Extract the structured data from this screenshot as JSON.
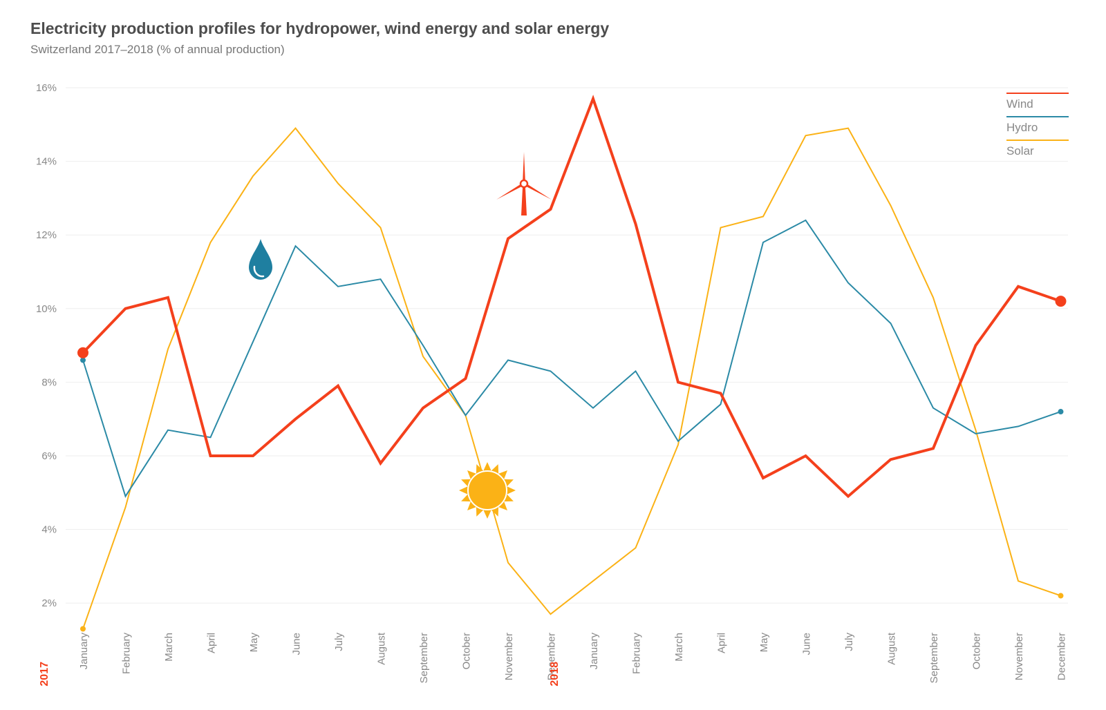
{
  "title": "Electricity production profiles for hydropower, wind energy and solar energy",
  "subtitle": "Switzerland 2017–2018 (% of annual production)",
  "colors": {
    "wind": "#f4401c",
    "hydro": "#2b8aa6",
    "solar": "#fbb216",
    "grid": "#eeeeee"
  },
  "icons": [
    "water-drop-icon",
    "wind-turbine-icon",
    "sun-icon"
  ],
  "chart_data": {
    "type": "line",
    "years": [
      {
        "label": "2017",
        "start_index": 0
      },
      {
        "label": "2018",
        "start_index": 12
      }
    ],
    "categories": [
      "January",
      "February",
      "March",
      "April",
      "May",
      "June",
      "July",
      "August",
      "September",
      "October",
      "November",
      "December",
      "January",
      "February",
      "March",
      "April",
      "May",
      "June",
      "July",
      "August",
      "September",
      "October",
      "November",
      "December"
    ],
    "y_ticks": [
      "2%",
      "4%",
      "6%",
      "8%",
      "10%",
      "12%",
      "14%",
      "16%"
    ],
    "ylim": [
      1.0,
      16.0
    ],
    "grid": true,
    "legend_position": "top-right",
    "series": [
      {
        "name": "Wind",
        "key": "wind",
        "values": [
          8.8,
          10.0,
          10.3,
          6.0,
          6.0,
          7.0,
          7.9,
          5.8,
          7.3,
          8.1,
          11.9,
          12.7,
          15.7,
          12.3,
          8.0,
          7.7,
          5.4,
          6.0,
          4.9,
          5.9,
          6.2,
          9.0,
          10.6,
          10.2
        ]
      },
      {
        "name": "Hydro",
        "key": "hydro",
        "values": [
          8.6,
          4.9,
          6.7,
          6.5,
          9.1,
          11.7,
          10.6,
          10.8,
          9.0,
          7.1,
          8.6,
          8.3,
          7.3,
          8.3,
          6.4,
          7.4,
          11.8,
          12.4,
          10.7,
          9.6,
          7.3,
          6.6,
          6.8,
          7.2
        ]
      },
      {
        "name": "Solar",
        "key": "solar",
        "values": [
          1.3,
          4.6,
          8.9,
          11.8,
          13.6,
          14.9,
          13.4,
          12.2,
          8.7,
          7.1,
          3.1,
          1.7,
          2.6,
          3.5,
          6.3,
          12.2,
          12.5,
          14.7,
          14.9,
          12.8,
          10.3,
          6.7,
          2.6,
          2.2
        ]
      }
    ]
  }
}
